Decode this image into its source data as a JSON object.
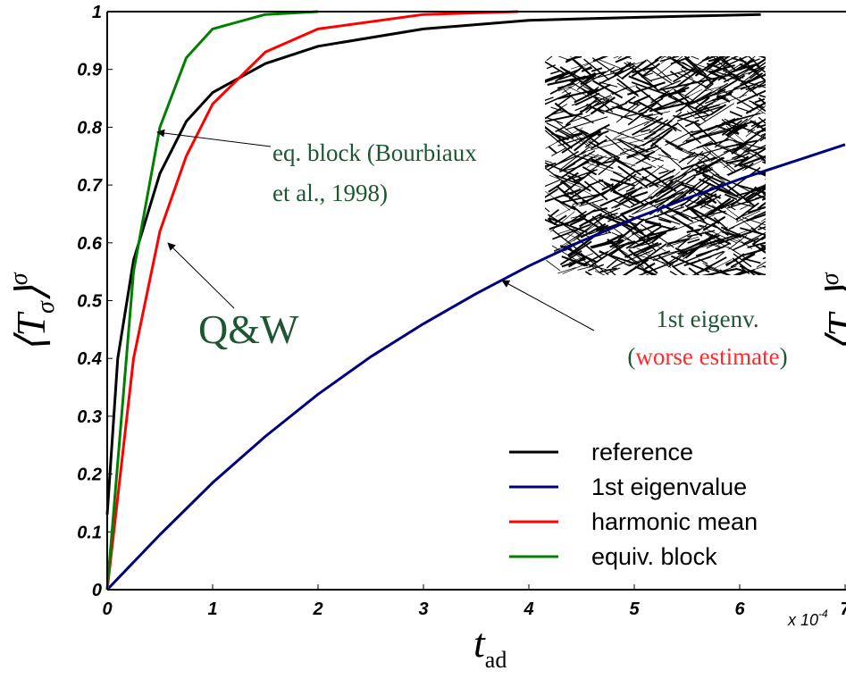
{
  "chart_data": {
    "type": "line",
    "y_label": {
      "open": "⟨T",
      "sub": "σ",
      "close": "⟩",
      "sup": "σ"
    },
    "right_label": {
      "open": "⟨T",
      "sub": "σ",
      "close": "⟩",
      "sup": "σ"
    },
    "x_label": {
      "base": "t",
      "sub": "ad"
    },
    "x_multiplier": {
      "base": "x 10",
      "exp": "-4"
    },
    "xlim": [
      0,
      7
    ],
    "xticks": [
      0,
      1,
      2,
      3,
      4,
      5,
      6,
      7
    ],
    "ylim": [
      0,
      1
    ],
    "yticks": [
      0,
      0.1,
      0.2,
      0.3,
      0.4,
      0.5,
      0.6,
      0.7,
      0.8,
      0.9,
      1
    ],
    "legend": "lower right",
    "annotations": {
      "eq_block": [
        "eq. block (Bourbiaux",
        "et al., 1998)"
      ],
      "qw": "Q&W",
      "eigen": {
        "line1": "1st eigenv.",
        "open": "(",
        "worse": "worse estimate",
        "close": ")"
      }
    },
    "series": [
      {
        "name": "reference",
        "color": "#000000",
        "x": [
          0,
          0.1,
          0.25,
          0.5,
          0.75,
          1,
          1.5,
          2,
          3,
          4,
          5,
          6.2
        ],
        "values": [
          0.13,
          0.4,
          0.57,
          0.72,
          0.81,
          0.86,
          0.91,
          0.94,
          0.97,
          0.985,
          0.99,
          0.995
        ]
      },
      {
        "name": "1st eigenvalue",
        "color": "#00007f",
        "x": [
          0,
          0.5,
          1,
          1.5,
          2,
          2.5,
          3,
          3.5,
          4,
          4.5,
          5,
          5.5,
          6,
          6.5,
          7
        ],
        "values": [
          0,
          0.095,
          0.185,
          0.265,
          0.338,
          0.403,
          0.46,
          0.512,
          0.56,
          0.603,
          0.642,
          0.677,
          0.71,
          0.74,
          0.77
        ]
      },
      {
        "name": "harmonic mean",
        "color": "#ff0000",
        "x": [
          0,
          0.25,
          0.5,
          0.75,
          1,
          1.5,
          2,
          3,
          3.9
        ],
        "values": [
          0,
          0.4,
          0.62,
          0.75,
          0.84,
          0.93,
          0.97,
          0.995,
          1
        ]
      },
      {
        "name": "equiv. block",
        "color": "#007f00",
        "x": [
          0,
          0.25,
          0.5,
          0.75,
          1,
          1.5,
          2
        ],
        "values": [
          0,
          0.55,
          0.8,
          0.92,
          0.97,
          0.995,
          1
        ]
      }
    ]
  }
}
